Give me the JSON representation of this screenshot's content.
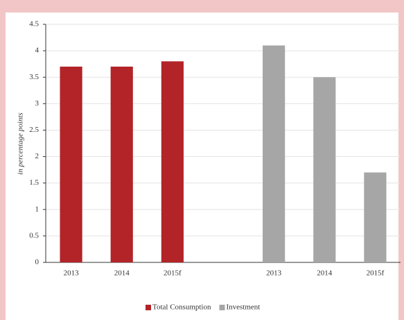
{
  "chart_data": {
    "type": "bar",
    "y_label": "in percentage points",
    "categories": [
      "2013",
      "2014",
      "2015f",
      null,
      "2013",
      "2014",
      "2015f"
    ],
    "series": [
      {
        "name": "Total Consumption",
        "color": "#b22428",
        "values": [
          3.7,
          3.7,
          3.8,
          null,
          null,
          null,
          null
        ]
      },
      {
        "name": "Investment",
        "color": "#a6a6a6",
        "values": [
          null,
          null,
          null,
          null,
          4.1,
          3.5,
          1.7
        ]
      }
    ],
    "ylim": [
      0,
      4.5
    ],
    "yticks": [
      0,
      0.5,
      1,
      1.5,
      2,
      2.5,
      3,
      3.5,
      4,
      4.5
    ],
    "grid": true,
    "legend": "bottom"
  }
}
